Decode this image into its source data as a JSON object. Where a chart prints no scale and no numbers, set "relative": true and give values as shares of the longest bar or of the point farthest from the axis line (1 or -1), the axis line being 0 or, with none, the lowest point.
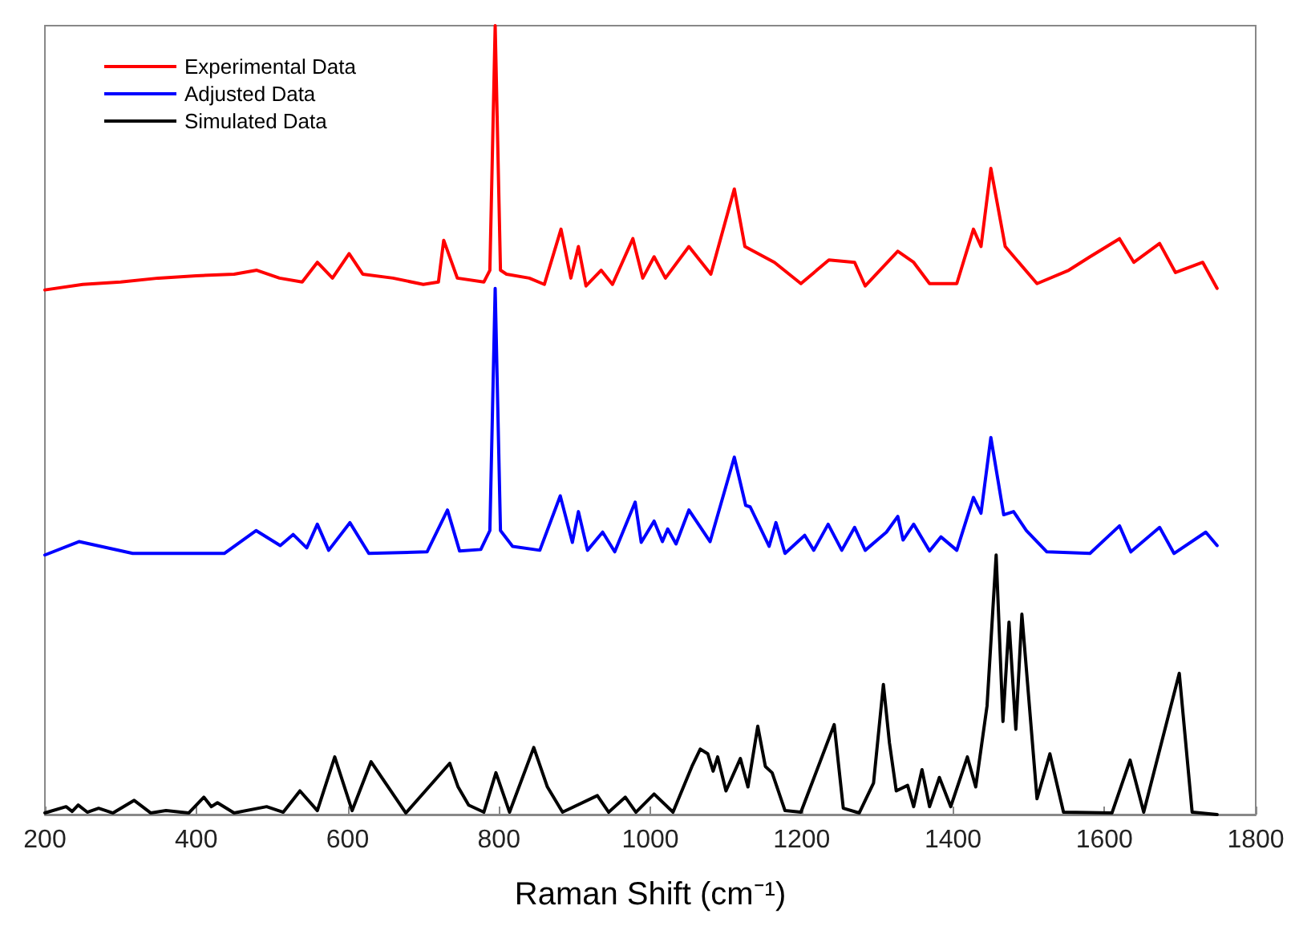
{
  "chart_data": {
    "type": "line",
    "relative": true,
    "xlabel": "Raman Shift (cm⁻¹)",
    "xlim": [
      200,
      1800
    ],
    "xticks": [
      200,
      400,
      600,
      800,
      1000,
      1200,
      1400,
      1600,
      1800
    ],
    "legend": "top left",
    "marker": "none",
    "line_style": "solid",
    "grid": false,
    "series": [
      {
        "name": "Experimental Data",
        "color": "#ff0000",
        "x": [
          200,
          250,
          300,
          350,
          400,
          450,
          480,
          510,
          540,
          560,
          580,
          602,
          620,
          660,
          700,
          720,
          727,
          745,
          780,
          788,
          795,
          802,
          810,
          840,
          860,
          882,
          895,
          905,
          915,
          935,
          950,
          977,
          990,
          1005,
          1020,
          1051,
          1080,
          1111,
          1125,
          1164,
          1199,
          1236,
          1270,
          1284,
          1327,
          1348,
          1369,
          1405,
          1427,
          1437,
          1450,
          1469,
          1511,
          1553,
          1581,
          1620,
          1639,
          1673,
          1694,
          1730,
          1749
        ],
        "values": [
          0.665,
          0.672,
          0.675,
          0.68,
          0.683,
          0.685,
          0.69,
          0.68,
          0.675,
          0.7,
          0.68,
          0.711,
          0.685,
          0.68,
          0.672,
          0.675,
          0.728,
          0.68,
          0.675,
          0.69,
          1.0,
          0.69,
          0.685,
          0.68,
          0.672,
          0.742,
          0.68,
          0.72,
          0.67,
          0.69,
          0.672,
          0.73,
          0.68,
          0.707,
          0.68,
          0.72,
          0.685,
          0.793,
          0.72,
          0.7,
          0.673,
          0.703,
          0.7,
          0.67,
          0.714,
          0.7,
          0.673,
          0.673,
          0.742,
          0.72,
          0.819,
          0.72,
          0.673,
          0.69,
          0.707,
          0.73,
          0.7,
          0.724,
          0.687,
          0.7,
          0.667
        ]
      },
      {
        "name": "Adjusted Data",
        "color": "#0000ff",
        "x": [
          200,
          245,
          316,
          437,
          479,
          511,
          528,
          546,
          560,
          575,
          603,
          628,
          705,
          732,
          748,
          776,
          788,
          795,
          802,
          818,
          854,
          881,
          897,
          905,
          917,
          937,
          953,
          980,
          988,
          1005,
          1016,
          1023,
          1034,
          1051,
          1079,
          1111,
          1126,
          1132,
          1157,
          1166,
          1178,
          1204,
          1216,
          1235,
          1253,
          1270,
          1284,
          1312,
          1327,
          1334,
          1348,
          1369,
          1384,
          1405,
          1427,
          1437,
          1450,
          1467,
          1480,
          1497,
          1524,
          1581,
          1620,
          1635,
          1673,
          1692,
          1734,
          1749
        ],
        "values": [
          0.329,
          0.346,
          0.331,
          0.331,
          0.36,
          0.341,
          0.355,
          0.338,
          0.368,
          0.335,
          0.37,
          0.331,
          0.333,
          0.386,
          0.334,
          0.336,
          0.36,
          0.667,
          0.36,
          0.34,
          0.335,
          0.404,
          0.345,
          0.384,
          0.335,
          0.358,
          0.333,
          0.396,
          0.345,
          0.372,
          0.346,
          0.362,
          0.343,
          0.386,
          0.346,
          0.453,
          0.392,
          0.39,
          0.34,
          0.37,
          0.331,
          0.354,
          0.335,
          0.368,
          0.335,
          0.364,
          0.335,
          0.358,
          0.378,
          0.348,
          0.368,
          0.334,
          0.352,
          0.335,
          0.402,
          0.382,
          0.478,
          0.38,
          0.384,
          0.36,
          0.333,
          0.331,
          0.366,
          0.333,
          0.364,
          0.331,
          0.358,
          0.341
        ]
      },
      {
        "name": "Simulated Data",
        "color": "#000000",
        "x": [
          200,
          228,
          236,
          244,
          256,
          271,
          290,
          318,
          340,
          360,
          390,
          410,
          420,
          428,
          450,
          493,
          515,
          537,
          560,
          583,
          606,
          631,
          677,
          735,
          746,
          760,
          780,
          796,
          814,
          846,
          864,
          884,
          930,
          945,
          967,
          981,
          1005,
          1030,
          1055,
          1066,
          1076,
          1083,
          1089,
          1100,
          1119,
          1129,
          1142,
          1152,
          1161,
          1178,
          1199,
          1243,
          1255,
          1276,
          1295,
          1308,
          1316,
          1325,
          1340,
          1348,
          1359,
          1369,
          1382,
          1397,
          1419,
          1430,
          1445,
          1457,
          1466,
          1474,
          1483,
          1491,
          1511,
          1528,
          1546,
          1610,
          1634,
          1652,
          1699,
          1716,
          1749
        ],
        "values": [
          0.002,
          0.01,
          0.004,
          0.012,
          0.003,
          0.008,
          0.002,
          0.018,
          0.002,
          0.005,
          0.002,
          0.022,
          0.01,
          0.015,
          0.002,
          0.01,
          0.003,
          0.03,
          0.005,
          0.073,
          0.005,
          0.067,
          0.002,
          0.065,
          0.035,
          0.012,
          0.003,
          0.053,
          0.003,
          0.085,
          0.035,
          0.003,
          0.024,
          0.003,
          0.022,
          0.003,
          0.026,
          0.003,
          0.061,
          0.083,
          0.077,
          0.055,
          0.073,
          0.03,
          0.071,
          0.035,
          0.112,
          0.061,
          0.053,
          0.005,
          0.003,
          0.114,
          0.008,
          0.002,
          0.04,
          0.165,
          0.091,
          0.03,
          0.037,
          0.01,
          0.057,
          0.01,
          0.047,
          0.01,
          0.073,
          0.035,
          0.138,
          0.329,
          0.118,
          0.244,
          0.108,
          0.254,
          0.02,
          0.077,
          0.003,
          0.002,
          0.069,
          0.003,
          0.179,
          0.003,
          0
        ]
      }
    ]
  }
}
